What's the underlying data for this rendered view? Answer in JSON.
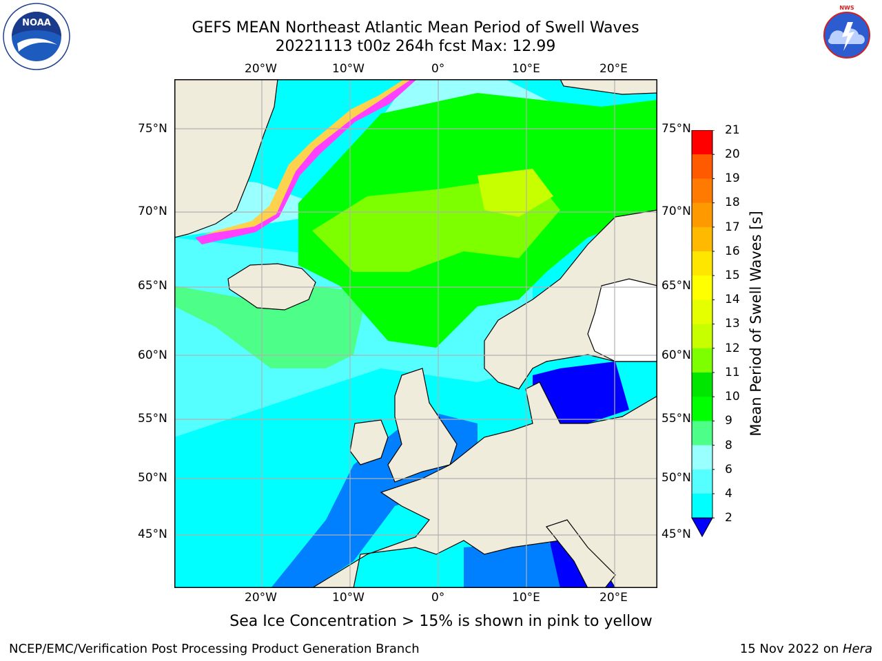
{
  "title": {
    "line1": "GEFS MEAN Northeast Atlantic Mean Period of Swell Waves",
    "line2": "20221113 t00z 264h fcst   Max: 12.99"
  },
  "map": {
    "lon_labels": [
      "20°W",
      "10°W",
      "0°",
      "10°E",
      "20°E"
    ],
    "lat_labels": [
      "75°N",
      "70°N",
      "65°N",
      "60°N",
      "55°N",
      "50°N",
      "45°N"
    ],
    "land_color": "#efecdc",
    "ocean_base_color": "#00ffff",
    "grid_color": "#b0b0b0"
  },
  "colorbar": {
    "title": "Mean Period of Swell Waves [s]",
    "ticks": [
      "21",
      "20",
      "19",
      "18",
      "17",
      "16",
      "15",
      "14",
      "13",
      "12",
      "11",
      "10",
      "9",
      "8",
      "6",
      "4",
      "2"
    ],
    "colors": [
      "#ff0000",
      "#ff3a00",
      "#ff5a00",
      "#ff7a00",
      "#ff9900",
      "#ffb900",
      "#ffe600",
      "#ffff00",
      "#e6ff00",
      "#c8ff00",
      "#7dff00",
      "#00e600",
      "#00ff00",
      "#4dff88",
      "#99ffff",
      "#55ffff",
      "#00ffff",
      "#0080ff"
    ],
    "extend_color": "#0000ff"
  },
  "annotation": "Sea Ice Concentration > 15% is shown in pink to yellow",
  "footer": {
    "left": "NCEP/EMC/Verification Post Processing Product Generation Branch",
    "right_date": "15 Nov 2022 on ",
    "right_host": "Hera"
  },
  "logos": {
    "noaa": "NOAA",
    "nws": "NATIONAL WEATHER SERVICE"
  }
}
